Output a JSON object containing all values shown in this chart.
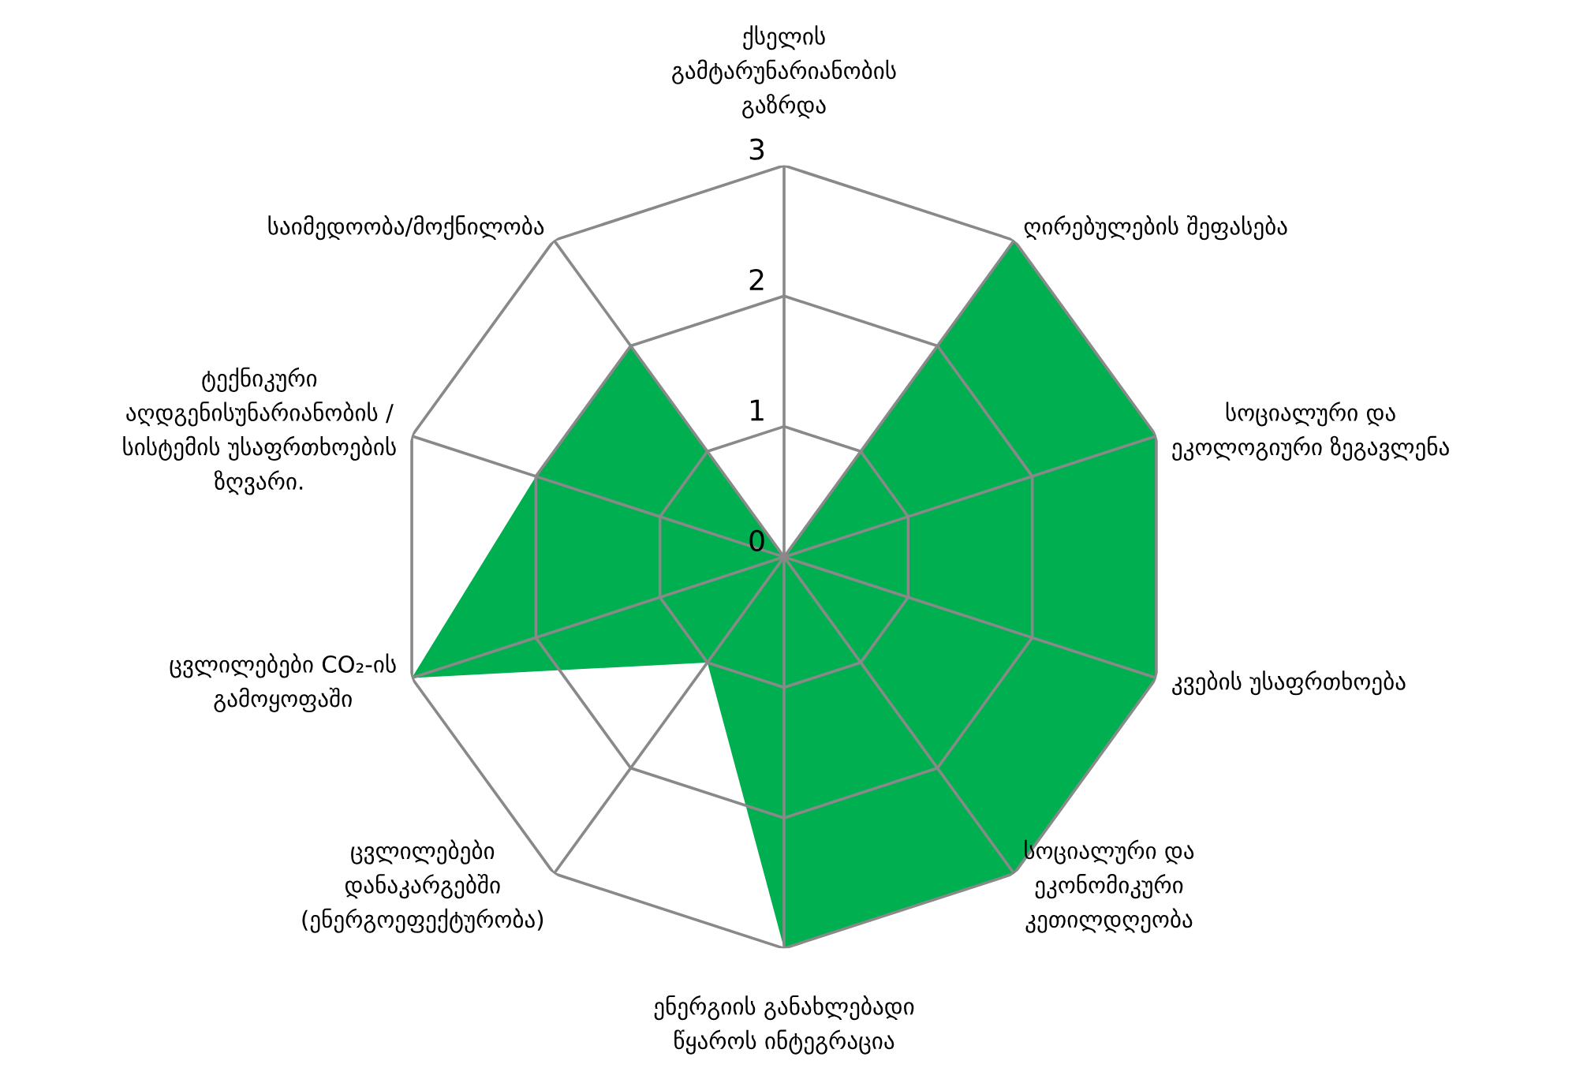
{
  "chart_data": {
    "type": "radar",
    "categories": [
      "ქსელის\nგამტარუნარიანობის\nგაზრდა",
      "ღირებულების შეფასება",
      "სოციალური და\nეკოლოგიური ზეგავლენა",
      "კვების უსაფრთხოება",
      "სოციალური და\nეკონომიკური\nკეთილდღეობა",
      "ენერგიის განახლებადი\nწყაროს ინტეგრაცია",
      "ცვლილებები\nდანაკარგებში\n(ენერგოეფექტურობა)",
      "ცვლილებები CO₂-ის\nგამოყოფაში",
      "ტექნიკური\nაღდგენისუნარიანობის /\nსისტემის უსაფრთხოების\nზღვარი.",
      "საიმედოობა/მოქნილობა"
    ],
    "series": [
      {
        "color": "#00b050",
        "values": [
          0,
          3,
          3,
          3,
          3,
          3,
          1,
          3,
          2,
          2
        ]
      }
    ],
    "ylim": [
      0,
      3
    ],
    "yticks": [
      0,
      1,
      2,
      3
    ],
    "grid": true
  }
}
